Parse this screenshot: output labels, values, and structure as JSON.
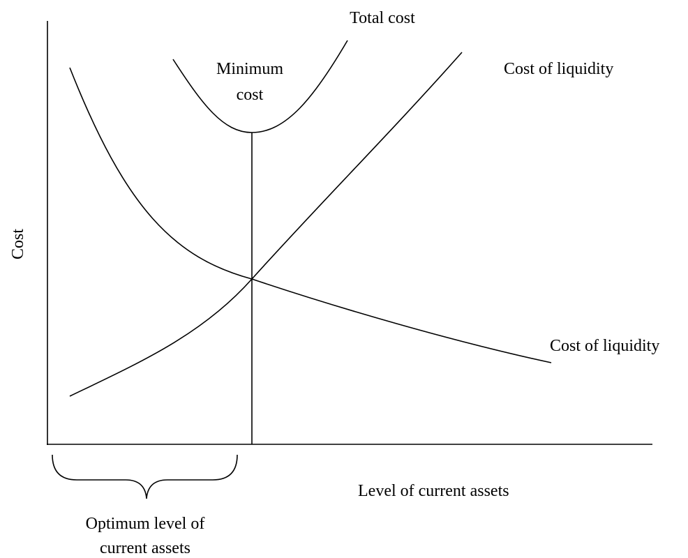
{
  "y_axis_label": "Cost",
  "x_axis_label": "Level of current assets",
  "curves": {
    "total": "Total cost",
    "rising": "Cost of liquidity",
    "falling": "Cost of liquidity"
  },
  "minimum": {
    "lines": [
      "Minimum",
      "cost"
    ]
  },
  "optimum": {
    "lines": [
      "Optimum level of",
      "current assets"
    ]
  }
}
